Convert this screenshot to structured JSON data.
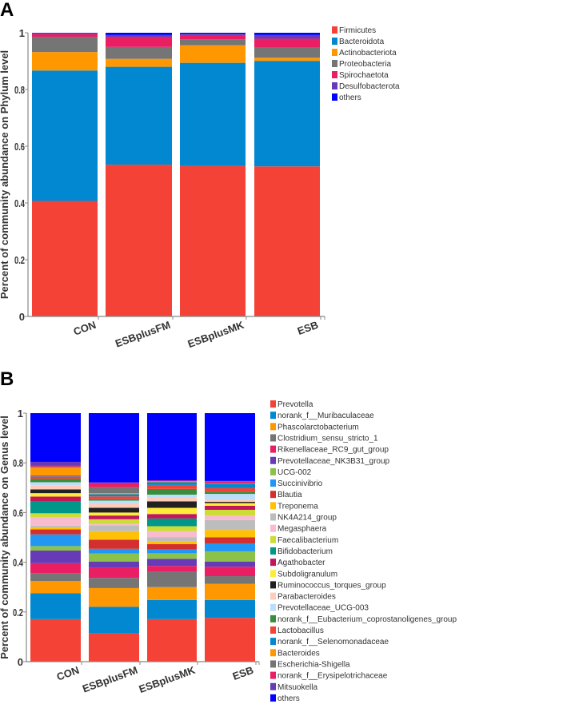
{
  "chart_data": [
    {
      "type": "bar",
      "stacked": true,
      "panel_label": "A",
      "ylabel": "Percent of community abundance on Phylum level",
      "xlabel": "",
      "ylim": [
        0,
        1
      ],
      "yticks": [
        "0",
        "0.2",
        "0.4",
        "0.6",
        "0.8",
        "1"
      ],
      "categories": [
        "CON",
        "ESBplusFM",
        "ESBplusMK",
        "ESB"
      ],
      "legend_position": "right",
      "series": [
        {
          "name": "Firmicutes",
          "color": "#f44336",
          "values": [
            0.407,
            0.535,
            0.53,
            0.529
          ]
        },
        {
          "name": "Bacteroidota",
          "color": "#0288d1",
          "values": [
            0.46,
            0.345,
            0.364,
            0.372
          ]
        },
        {
          "name": "Actinobacteriota",
          "color": "#ff9800",
          "values": [
            0.065,
            0.028,
            0.062,
            0.011
          ]
        },
        {
          "name": "Proteobacteria",
          "color": "#757575",
          "values": [
            0.054,
            0.042,
            0.021,
            0.035
          ]
        },
        {
          "name": "Spirochaetota",
          "color": "#e91e63",
          "values": [
            0.01,
            0.036,
            0.015,
            0.032
          ]
        },
        {
          "name": "Desulfobacterota",
          "color": "#673ab7",
          "values": [
            0.003,
            0.006,
            0.004,
            0.013
          ]
        },
        {
          "name": "others",
          "color": "#0000ff",
          "values": [
            0.001,
            0.008,
            0.004,
            0.008
          ]
        }
      ]
    },
    {
      "type": "bar",
      "stacked": true,
      "panel_label": "B",
      "ylabel": "Percent of community abundance on Genus level",
      "xlabel": "",
      "ylim": [
        0,
        1
      ],
      "yticks": [
        "0",
        "0.2",
        "0.4",
        "0.6",
        "0.8",
        "1"
      ],
      "categories": [
        "CON",
        "ESBplusFM",
        "ESBplusMK",
        "ESB"
      ],
      "legend_position": "right",
      "series": [
        {
          "name": "Prevotella",
          "color": "#f44336",
          "values": [
            0.171,
            0.113,
            0.171,
            0.176
          ]
        },
        {
          "name": "norank_f__Muribaculaceae",
          "color": "#0288d1",
          "values": [
            0.104,
            0.108,
            0.077,
            0.072
          ]
        },
        {
          "name": "Phascolarctobacterium",
          "color": "#ff9800",
          "values": [
            0.049,
            0.075,
            0.052,
            0.065
          ]
        },
        {
          "name": "Clostridium_sensu_stricto_1",
          "color": "#757575",
          "values": [
            0.032,
            0.041,
            0.061,
            0.031
          ]
        },
        {
          "name": "Rikenellaceae_RC9_gut_group",
          "color": "#e91e63",
          "values": [
            0.04,
            0.04,
            0.024,
            0.038
          ]
        },
        {
          "name": "Prevotellaceae_NK3B31_group",
          "color": "#673ab7",
          "values": [
            0.051,
            0.026,
            0.029,
            0.021
          ]
        },
        {
          "name": "UCG-002",
          "color": "#8bc34a",
          "values": [
            0.018,
            0.032,
            0.022,
            0.041
          ]
        },
        {
          "name": "Succinivibrio",
          "color": "#2196f3",
          "values": [
            0.047,
            0.019,
            0.016,
            0.032
          ]
        },
        {
          "name": "Blautia",
          "color": "#d32f2f",
          "values": [
            0.02,
            0.037,
            0.021,
            0.024
          ]
        },
        {
          "name": "Treponema",
          "color": "#ffc107",
          "values": [
            0.009,
            0.034,
            0.012,
            0.03
          ]
        },
        {
          "name": "NK4A214_group",
          "color": "#bdbdbd",
          "values": [
            0.006,
            0.023,
            0.015,
            0.04
          ]
        },
        {
          "name": "Megasphaera",
          "color": "#f8bbd0",
          "values": [
            0.035,
            0.006,
            0.025,
            0.018
          ]
        },
        {
          "name": "Faecalibacterium",
          "color": "#cddc39",
          "values": [
            0.015,
            0.019,
            0.02,
            0.023
          ]
        },
        {
          "name": "Bifidobacterium",
          "color": "#009688",
          "values": [
            0.047,
            0.0,
            0.031,
            0.0
          ]
        },
        {
          "name": "Agathobacter",
          "color": "#c2185b",
          "values": [
            0.02,
            0.015,
            0.018,
            0.016
          ]
        },
        {
          "name": "Subdoligranulum",
          "color": "#ffeb3b",
          "values": [
            0.014,
            0.012,
            0.025,
            0.011
          ]
        },
        {
          "name": "Ruminococcus_torques_group",
          "color": "#212121",
          "values": [
            0.015,
            0.019,
            0.026,
            0.005
          ]
        },
        {
          "name": "Parabacteroides",
          "color": "#ffccbc",
          "values": [
            0.017,
            0.018,
            0.014,
            0.01
          ]
        },
        {
          "name": "Prevotellaceae_UCG-003",
          "color": "#bbdefb",
          "values": [
            0.012,
            0.011,
            0.013,
            0.022
          ]
        },
        {
          "name": "norank_f__Eubacterium_coprostanoligenes_group",
          "color": "#388e3c",
          "values": [
            0.014,
            0.006,
            0.023,
            0.008
          ]
        },
        {
          "name": "Lactobacillus",
          "color": "#f44336",
          "values": [
            0.009,
            0.011,
            0.016,
            0.015
          ]
        },
        {
          "name": "norank_f__Selenomonadaceae",
          "color": "#0288d1",
          "values": [
            0.004,
            0.009,
            0.011,
            0.018
          ]
        },
        {
          "name": "Bacteroides",
          "color": "#ff9800",
          "values": [
            0.032,
            0.004,
            0.003,
            0.0
          ]
        },
        {
          "name": "Escherichia-Shigella",
          "color": "#757575",
          "values": [
            0.004,
            0.024,
            0.001,
            0.002
          ]
        },
        {
          "name": "norank_f__Erysipelotrichaceae",
          "color": "#e91e63",
          "values": [
            0.003,
            0.017,
            0.003,
            0.008
          ]
        },
        {
          "name": "Mitsuokella",
          "color": "#673ab7",
          "values": [
            0.016,
            0.002,
            0.0,
            0.001
          ]
        },
        {
          "name": "others",
          "color": "#0000ff",
          "values": [
            0.196,
            0.279,
            0.271,
            0.273
          ]
        }
      ]
    }
  ]
}
